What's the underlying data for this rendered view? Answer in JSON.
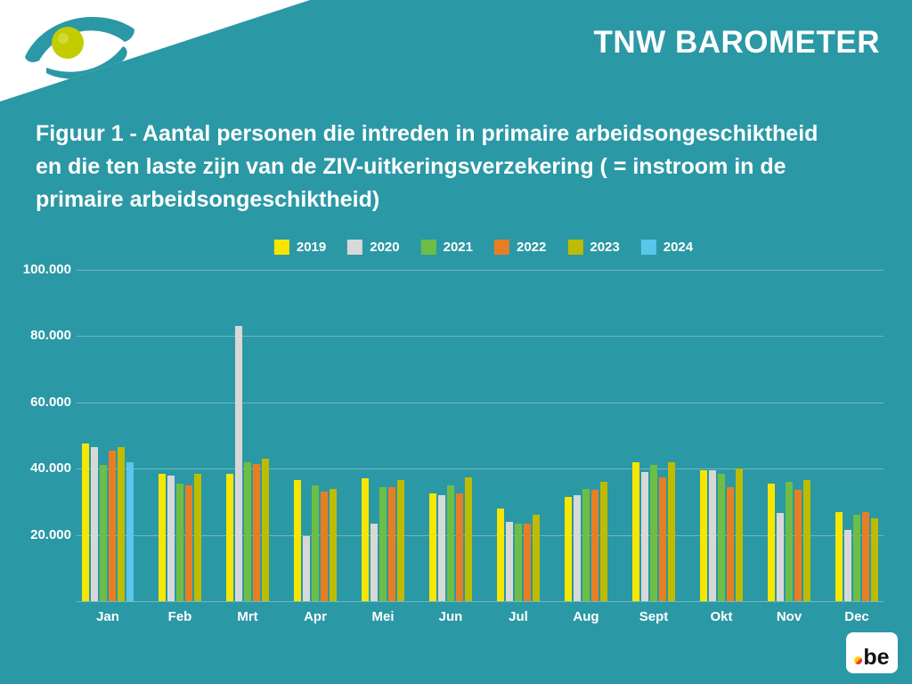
{
  "header": {
    "brand": "TNW BAROMETER",
    "figure_title_lines": [
      "Figuur 1 - Aantal personen die intreden in primaire arbeidsongeschiktheid",
      "en die ten laste zijn van de ZIV-uitkeringsverzekering ( = instroom in de",
      "primaire arbeidsongeschiktheid)"
    ]
  },
  "footer": {
    "be_logo_text": "be"
  },
  "colors": {
    "background": "#2B98A5",
    "text": "#FFFFFF",
    "gridline": "rgba(255,255,255,0.32)"
  },
  "chart_data": {
    "type": "bar",
    "title": "Figuur 1 - Aantal personen die intreden in primaire arbeidsongeschiktheid en die ten laste zijn van de ZIV-uitkeringsverzekering ( = instroom in de primaire arbeidsongeschiktheid)",
    "categories": [
      "Jan",
      "Feb",
      "Mrt",
      "Apr",
      "Mei",
      "Jun",
      "Jul",
      "Aug",
      "Sept",
      "Okt",
      "Nov",
      "Dec"
    ],
    "series": [
      {
        "name": "2019",
        "color": "#F6E600",
        "values": [
          47500,
          38500,
          38500,
          36500,
          37000,
          32500,
          28000,
          31500,
          42000,
          39500,
          35500,
          27000
        ]
      },
      {
        "name": "2020",
        "color": "#D8D8D8",
        "values": [
          46500,
          38000,
          83000,
          19500,
          23500,
          32000,
          24000,
          32000,
          39000,
          39500,
          26500,
          21500
        ]
      },
      {
        "name": "2021",
        "color": "#6EBE46",
        "values": [
          41000,
          35500,
          42000,
          35000,
          34500,
          35000,
          23500,
          34000,
          41000,
          38500,
          36000,
          26000
        ]
      },
      {
        "name": "2022",
        "color": "#E87E23",
        "values": [
          45500,
          35000,
          41500,
          33000,
          34500,
          32500,
          23500,
          33500,
          37500,
          34500,
          33500,
          27000
        ]
      },
      {
        "name": "2023",
        "color": "#BFBB00",
        "values": [
          46500,
          38500,
          43000,
          34000,
          36500,
          37500,
          26000,
          36000,
          42000,
          40000,
          36500,
          25000
        ]
      },
      {
        "name": "2024",
        "color": "#5BC6EC",
        "values": [
          42000,
          null,
          null,
          null,
          null,
          null,
          null,
          null,
          null,
          null,
          null,
          null
        ]
      }
    ],
    "ylim": [
      0,
      100000
    ],
    "ytick_values": [
      100000,
      80000,
      60000,
      40000,
      20000
    ],
    "ytick_labels": [
      "100.000",
      "80.000",
      "60.000",
      "40.000",
      "20.000"
    ],
    "grid": true,
    "legend_position": "top"
  }
}
